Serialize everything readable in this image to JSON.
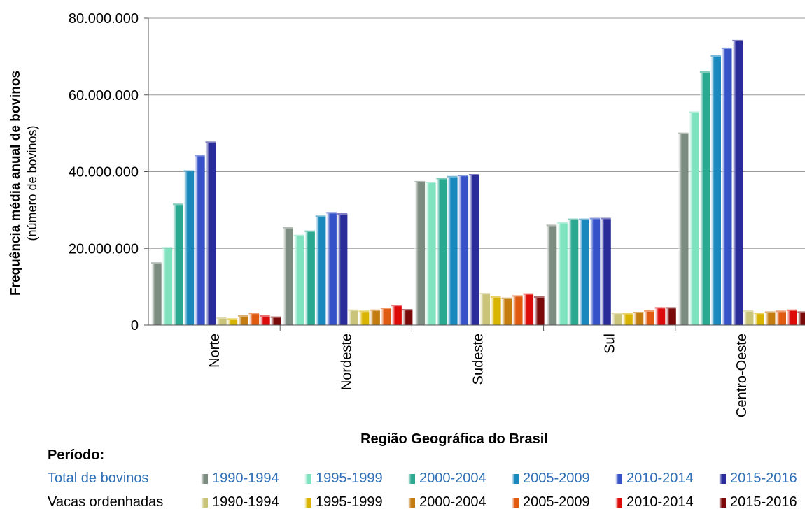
{
  "chart_data": {
    "type": "bar",
    "ylabel": "Frequência média anual  de bovinos",
    "ylabel_sub": "(número de bovinos)",
    "xlabel": "Região Geográfica do Brasil",
    "ylim": [
      0,
      80000000
    ],
    "yticks": [
      "0",
      "20.000.000",
      "40.000.000",
      "60.000.000",
      "80.000.000"
    ],
    "ytick_values": [
      0,
      20000000,
      40000000,
      60000000,
      80000000
    ],
    "categories": [
      "Norte",
      "Nordeste",
      "Sudeste",
      "Sul",
      "Centro-Oeste"
    ],
    "series": [
      {
        "group": "Total de bovinos",
        "name": "1990-1994",
        "color": "#7d8c80",
        "values": [
          16000000,
          25200000,
          37200000,
          25800000,
          49800000
        ]
      },
      {
        "group": "Total de bovinos",
        "name": "1995-1999",
        "color": "#7fe3c0",
        "values": [
          20000000,
          23200000,
          37000000,
          26500000,
          55300000
        ]
      },
      {
        "group": "Total de bovinos",
        "name": "2000-2004",
        "color": "#2aa890",
        "values": [
          31300000,
          24300000,
          38000000,
          27400000,
          65800000
        ]
      },
      {
        "group": "Total de bovinos",
        "name": "2005-2009",
        "color": "#1888bd",
        "values": [
          40000000,
          28200000,
          38500000,
          27400000,
          70000000
        ]
      },
      {
        "group": "Total de bovinos",
        "name": "2010-2014",
        "color": "#3552c8",
        "values": [
          44000000,
          29100000,
          38800000,
          27600000,
          72000000
        ]
      },
      {
        "group": "Total de bovinos",
        "name": "2015-2016",
        "color": "#2a2c9a",
        "values": [
          47500000,
          28800000,
          39000000,
          27600000,
          74000000
        ]
      },
      {
        "group": "Vacas ordenhadas",
        "name": "1990-1994",
        "color": "#c9c47a",
        "values": [
          1700000,
          3700000,
          8000000,
          2900000,
          3500000
        ]
      },
      {
        "group": "Vacas ordenhadas",
        "name": "1995-1999",
        "color": "#d8b400",
        "values": [
          1400000,
          3400000,
          7100000,
          2800000,
          2900000
        ]
      },
      {
        "group": "Vacas ordenhadas",
        "name": "2000-2004",
        "color": "#c47c10",
        "values": [
          2200000,
          3700000,
          6800000,
          3100000,
          3200000
        ]
      },
      {
        "group": "Vacas ordenhadas",
        "name": "2005-2009",
        "color": "#e05a10",
        "values": [
          2900000,
          4200000,
          7400000,
          3500000,
          3400000
        ]
      },
      {
        "group": "Vacas ordenhadas",
        "name": "2010-2014",
        "color": "#dd0a0a",
        "values": [
          2200000,
          4900000,
          7900000,
          4300000,
          3700000
        ]
      },
      {
        "group": "Vacas ordenhadas",
        "name": "2015-2016",
        "color": "#7a0a0a",
        "values": [
          1900000,
          3800000,
          7100000,
          4300000,
          3200000
        ]
      }
    ],
    "legend": {
      "title": "Período:",
      "rows": [
        {
          "label": "Total de bovinos",
          "color": "#2e6fb5",
          "entries": [
            "1990-1994",
            "1995-1999",
            "2000-2004",
            "2005-2009",
            "2010-2014",
            "2015-2016"
          ]
        },
        {
          "label": "Vacas ordenhadas",
          "color": "#000000",
          "entries": [
            "1990-1994",
            "1995-1999",
            "2000-2004",
            "2005-2009",
            "2010-2014",
            "2015-2016"
          ]
        }
      ]
    },
    "grid": true,
    "legend_placement": "bottom"
  }
}
